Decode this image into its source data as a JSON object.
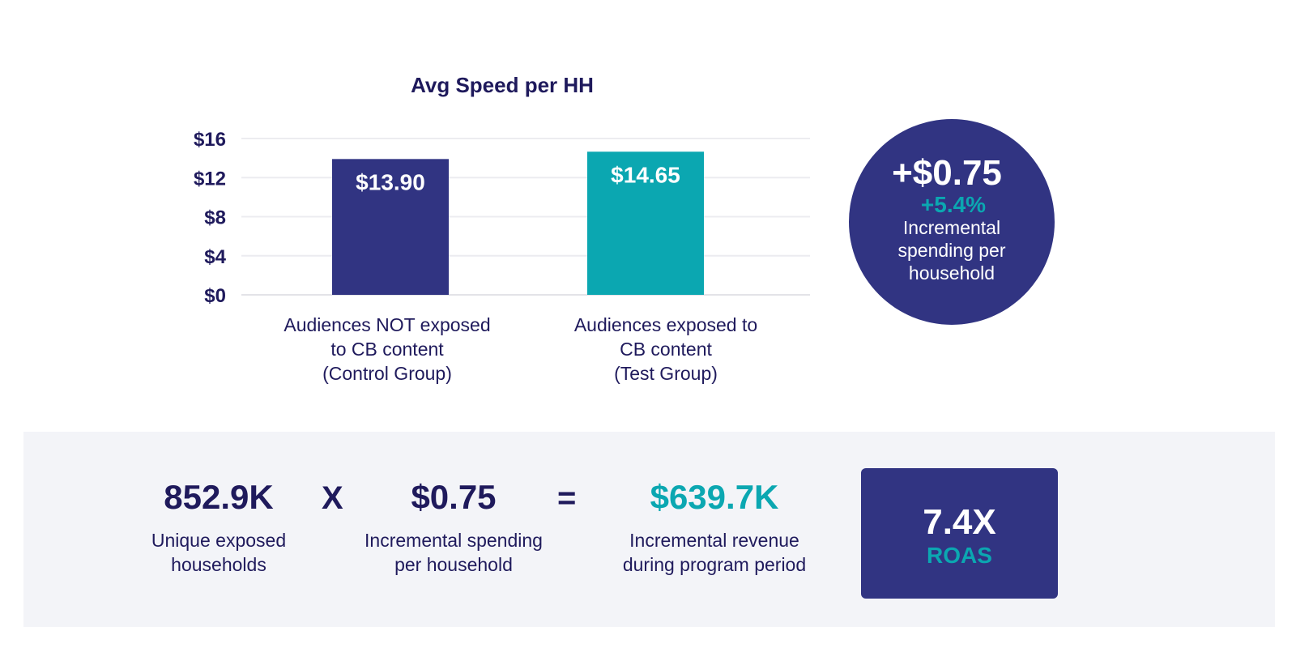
{
  "chart_data": {
    "type": "bar",
    "title": "Avg Speed per HH",
    "categories": [
      "Audiences NOT exposed\nto CB content\n(Control Group)",
      "Audiences exposed to\nCB content\n(Test Group)"
    ],
    "values": [
      13.9,
      14.65
    ],
    "data_labels": [
      "$13.90",
      "$14.65"
    ],
    "bar_colors": [
      "#313482",
      "#0ba7b1"
    ],
    "yticks": [
      "$0",
      "$4",
      "$8",
      "$12",
      "$16"
    ],
    "ytick_values": [
      0,
      4,
      8,
      12,
      16
    ],
    "ylim": [
      0,
      16
    ],
    "grid": true
  },
  "callout": {
    "value": "+$0.75",
    "percent": "+5.4%",
    "description": "Incremental spending per household",
    "color": "#313482"
  },
  "summary": {
    "households": {
      "value": "852.9K",
      "label": "Unique exposed\nhouseholds"
    },
    "times": "X",
    "spend": {
      "value": "$0.75",
      "label": "Incremental spending\nper household"
    },
    "equals": "=",
    "revenue": {
      "value": "$639.7K",
      "label": "Incremental revenue\nduring program period",
      "color": "#0ba7b1"
    },
    "roas": {
      "value": "7.4X",
      "label": "ROAS"
    }
  }
}
